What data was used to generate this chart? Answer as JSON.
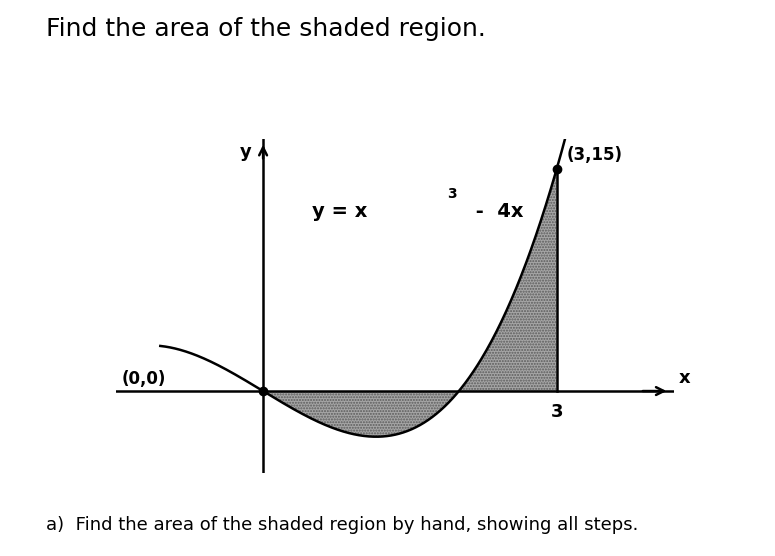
{
  "title": "Find the area of the shaded region.",
  "title_fontsize": 18,
  "point1_label": "(3,15)",
  "point1_x": 3,
  "point1_y": 15,
  "point0_label": "(0,0)",
  "x3_label": "3",
  "xlabel": "x",
  "ylabel": "y",
  "shade_color": "#888888",
  "shade_alpha": 0.75,
  "background_color": "#ffffff",
  "curve_color": "#000000",
  "axis_color": "#000000",
  "xlim": [
    -1.5,
    4.2
  ],
  "ylim": [
    -5.5,
    17
  ],
  "footnote": "a)  Find the area of the shaded region by hand, showing all steps.",
  "footnote_fontsize": 13
}
